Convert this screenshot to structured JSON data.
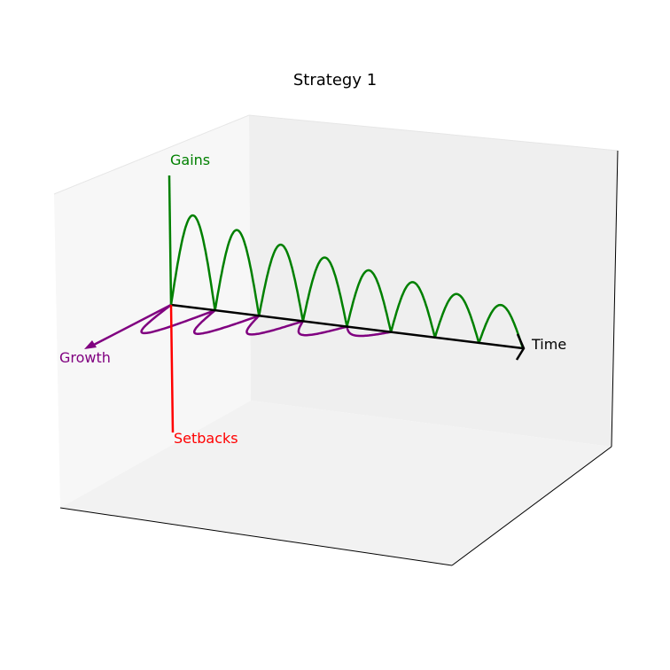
{
  "chart_data": {
    "type": "line",
    "projection": "3d",
    "title": "Strategy 1",
    "grid": false,
    "axis_ticks": false,
    "axes_arrows": [
      {
        "label": "Time",
        "color": "#000000"
      },
      {
        "label": "Gains",
        "color": "#008000"
      },
      {
        "label": "Growth",
        "color": "#800080"
      },
      {
        "label": "Setbacks",
        "color": "#ff0000"
      }
    ],
    "series": [
      {
        "color": "#008000",
        "equation": "gains = |sin(t)| * decay(t)",
        "cycles": 8,
        "peaks": [
          1.0,
          0.9,
          0.8,
          0.72,
          0.64,
          0.57,
          0.5,
          0.44
        ]
      },
      {
        "color": "#800080",
        "equation": "growth = |sin(t)| * decay(t)",
        "cycles": 5,
        "peaks": [
          0.8,
          0.65,
          0.5,
          0.35,
          0.2
        ]
      }
    ]
  },
  "colors": {
    "pane_left": "#f7f7f7",
    "pane_back": "#efefef",
    "pane_floor": "#f2f2f2",
    "pane_edge": "#000000"
  }
}
